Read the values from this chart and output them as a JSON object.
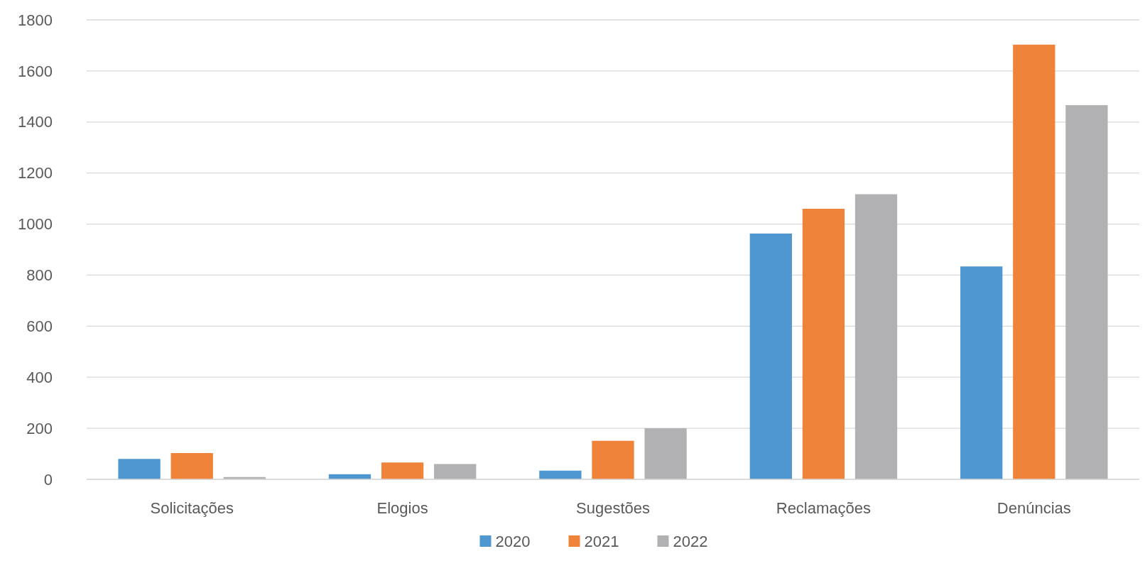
{
  "chart_data": {
    "type": "bar",
    "categories": [
      "Solicitações",
      "Elogios",
      "Sugestões",
      "Reclamações",
      "Denúncias"
    ],
    "series": [
      {
        "name": "2020",
        "color": "#4e97d1",
        "values": [
          80,
          20,
          34,
          963,
          834
        ]
      },
      {
        "name": "2021",
        "color": "#f0833a",
        "values": [
          103,
          66,
          151,
          1060,
          1703
        ]
      },
      {
        "name": "2022",
        "color": "#b1b1b3",
        "values": [
          9,
          60,
          200,
          1117,
          1466
        ]
      }
    ],
    "ylim": [
      0,
      1800
    ],
    "yticks": [
      0,
      200,
      400,
      600,
      800,
      1000,
      1200,
      1400,
      1600,
      1800
    ],
    "grid": "y",
    "legend": "bottom"
  }
}
